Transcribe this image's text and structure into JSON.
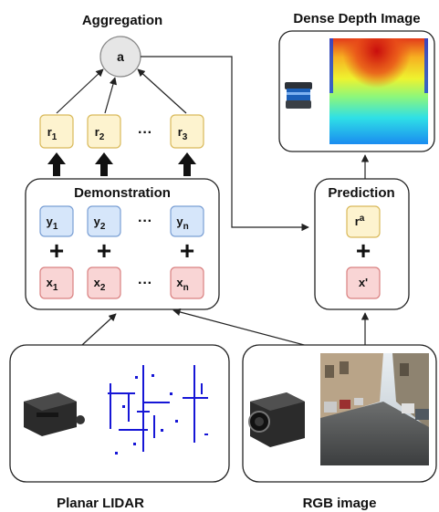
{
  "title_aggregation": "Aggregation",
  "title_dense": "Dense Depth Image",
  "title_demo": "Demonstration",
  "title_prediction": "Prediction",
  "label_lidar": "Planar LIDAR",
  "label_rgb": "RGB image",
  "agg_node": "a",
  "ellipsis": "···",
  "plus": "+",
  "r_nodes": [
    {
      "main": "r",
      "sub": "1"
    },
    {
      "main": "r",
      "sub": "2"
    },
    {
      "main": "r",
      "sub": "3"
    }
  ],
  "y_nodes": [
    {
      "main": "y",
      "sub": "1"
    },
    {
      "main": "y",
      "sub": "2"
    },
    {
      "main": "y",
      "sub": "n"
    }
  ],
  "x_nodes": [
    {
      "main": "x",
      "sub": "1"
    },
    {
      "main": "x",
      "sub": "2"
    },
    {
      "main": "x",
      "sub": "n"
    }
  ],
  "pred_r": {
    "main": "r",
    "sup": "a"
  },
  "pred_x": "x'",
  "colors": {
    "yellow_fill": "#fdf3cf",
    "yellow_stroke": "#d9b95a",
    "blue_fill": "#d6e6fa",
    "blue_stroke": "#7a9fd4",
    "red_fill": "#f9d5d5",
    "red_stroke": "#d98080",
    "agg_fill": "#e6e6e6"
  }
}
